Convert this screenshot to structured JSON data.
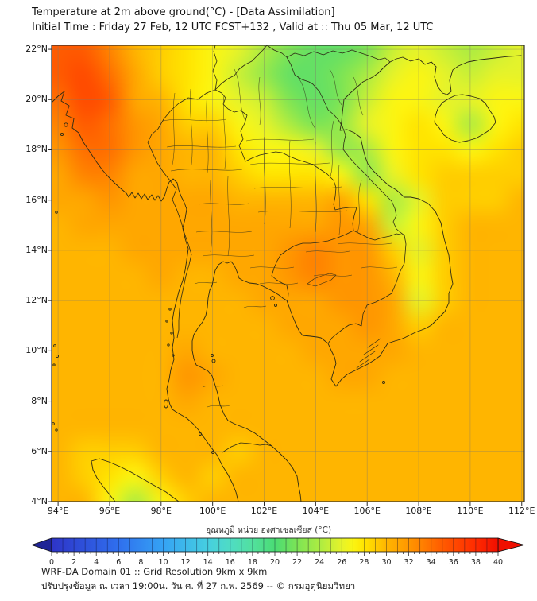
{
  "header": {
    "title_line1": "Temperature at 2m above ground(°C) - [Data Assimilation]",
    "title_line2": "Initial Time : Friday 27 Feb, 12 UTC FCST+132 , Valid at :: Thu 05 Mar, 12 UTC"
  },
  "chart_data": {
    "type": "heatmap",
    "title": "Temperature at 2m above ground(°C) - [Data Assimilation]",
    "subtitle": "Initial Time : Friday 27 Feb, 12 UTC FCST+132 , Valid at :: Thu 05 Mar, 12 UTC",
    "x_axis": {
      "label": "longitude",
      "range": [
        93.75,
        112.1
      ],
      "tick_values": [
        94,
        96,
        98,
        100,
        102,
        104,
        106,
        108,
        110,
        112
      ],
      "tick_labels": [
        "94°E",
        "96°E",
        "98°E",
        "100°E",
        "102°E",
        "104°E",
        "106°E",
        "108°E",
        "110°E",
        "112°E"
      ]
    },
    "y_axis": {
      "label": "latitude",
      "range": [
        22.16,
        4.0
      ],
      "tick_values": [
        22,
        20,
        18,
        16,
        14,
        12,
        10,
        8,
        6,
        4
      ],
      "tick_labels": [
        "22°N",
        "20°N",
        "18°N",
        "16°N",
        "14°N",
        "12°N",
        "10°N",
        "8°N",
        "6°N",
        "4°N"
      ]
    },
    "grid_on": true,
    "colorbar": {
      "label": "อุณหภูมิ หน่วย องศาเซลเซียส (°C)",
      "min": 0,
      "max": 40,
      "tick_labels": [
        0,
        2,
        4,
        6,
        8,
        10,
        12,
        14,
        16,
        18,
        20,
        22,
        24,
        26,
        28,
        30,
        32,
        34,
        36,
        38,
        40
      ],
      "minor_tick_step": 0.5,
      "left_arrow_color": "#1f2496",
      "right_arrow_color": "#ef0f00",
      "scale_stops": [
        [
          0,
          "#2E34C8"
        ],
        [
          6,
          "#2F6FEE"
        ],
        [
          10,
          "#35A3F4"
        ],
        [
          14,
          "#46CFE0"
        ],
        [
          16,
          "#4FDCC4"
        ],
        [
          18,
          "#52E09E"
        ],
        [
          20,
          "#4ADC74"
        ],
        [
          22,
          "#7DE455"
        ],
        [
          24,
          "#ACEC42"
        ],
        [
          26,
          "#E6F32A"
        ],
        [
          27,
          "#FBF513"
        ],
        [
          28,
          "#FFE400"
        ],
        [
          29,
          "#FFCE00"
        ],
        [
          30,
          "#FFB500"
        ],
        [
          31,
          "#FFA700"
        ],
        [
          32,
          "#FF9600"
        ],
        [
          33,
          "#FF8400"
        ],
        [
          34,
          "#FF6F00"
        ],
        [
          35,
          "#FF5B00"
        ],
        [
          36,
          "#FF4A00"
        ],
        [
          38,
          "#FF2B00"
        ],
        [
          40,
          "#F10E00"
        ]
      ]
    },
    "grid_lon": [
      94,
      95,
      96,
      97,
      98,
      99,
      100,
      101,
      102,
      103,
      104,
      105,
      106,
      107,
      108,
      109,
      110,
      111,
      112
    ],
    "grid_lat": [
      22,
      21,
      20,
      19,
      18,
      17,
      16,
      15,
      14,
      13,
      12,
      11,
      10,
      9,
      8,
      7,
      6,
      5,
      4
    ],
    "values_c": [
      [
        35,
        35,
        33,
        30,
        29,
        28,
        27,
        26,
        24,
        22,
        21,
        21,
        22,
        25,
        26,
        25,
        24,
        25,
        26
      ],
      [
        35,
        36,
        34,
        31,
        29,
        28,
        27,
        25,
        23,
        21,
        21,
        22,
        24,
        26,
        27,
        26,
        25,
        26,
        26
      ],
      [
        34,
        36,
        35,
        31,
        30,
        28,
        27,
        26,
        25,
        22,
        21,
        22,
        25,
        27,
        27,
        26,
        26,
        27,
        27
      ],
      [
        33,
        35,
        34,
        32,
        31,
        29,
        29,
        27,
        26,
        24,
        22,
        23,
        26,
        27,
        28,
        27,
        24,
        27,
        28
      ],
      [
        32,
        34,
        34,
        32,
        31,
        30,
        30,
        28,
        27,
        27,
        26,
        23,
        24,
        27,
        28,
        28,
        27,
        28,
        29
      ],
      [
        31,
        33,
        33,
        31,
        31,
        30,
        30,
        29,
        28,
        28,
        28,
        27,
        23,
        26,
        28,
        29,
        29,
        29,
        29
      ],
      [
        31,
        31,
        32,
        31,
        31,
        31,
        31,
        30,
        30,
        30,
        30,
        31,
        28,
        24,
        26,
        29,
        29,
        29,
        30
      ],
      [
        30,
        31,
        31,
        31,
        31,
        31,
        31,
        31,
        31,
        31,
        31,
        32,
        31,
        25,
        27,
        29,
        30,
        30,
        30
      ],
      [
        30,
        30,
        30,
        31,
        31,
        31,
        31,
        31,
        31,
        32,
        33,
        32,
        32,
        29,
        26,
        29,
        30,
        30,
        30
      ],
      [
        30,
        30,
        30,
        30,
        31,
        30,
        30,
        31,
        31,
        32,
        33,
        32,
        32,
        30,
        27,
        29,
        30,
        30,
        30
      ],
      [
        30,
        30,
        30,
        30,
        30,
        30,
        30,
        30,
        31,
        31,
        31,
        32,
        32,
        31,
        26,
        29,
        30,
        30,
        30
      ],
      [
        30,
        30,
        30,
        30,
        30,
        30,
        30,
        30,
        30,
        31,
        31,
        31,
        32,
        31,
        29,
        30,
        30,
        30,
        30
      ],
      [
        30,
        30,
        30,
        30,
        30,
        31,
        30,
        30,
        30,
        30,
        31,
        31,
        31,
        31,
        30,
        30,
        30,
        30,
        30
      ],
      [
        30,
        30,
        30,
        30,
        30,
        32,
        31,
        30,
        30,
        30,
        30,
        31,
        31,
        30,
        30,
        30,
        30,
        30,
        30
      ],
      [
        30,
        30,
        30,
        30,
        30,
        31,
        30,
        30,
        30,
        30,
        30,
        30,
        30,
        30,
        30,
        30,
        30,
        30,
        30
      ],
      [
        30,
        30,
        30,
        30,
        30,
        30,
        30,
        30,
        30,
        30,
        30,
        30,
        30,
        30,
        30,
        30,
        30,
        30,
        30
      ],
      [
        30,
        29,
        29,
        29,
        30,
        30,
        30,
        29,
        30,
        30,
        30,
        30,
        30,
        30,
        30,
        30,
        30,
        30,
        30
      ],
      [
        30,
        29,
        28,
        27,
        29,
        30,
        29,
        30,
        30,
        30,
        30,
        30,
        30,
        30,
        30,
        30,
        30,
        30,
        30
      ],
      [
        30,
        30,
        27,
        24,
        27,
        29,
        30,
        30,
        30,
        30,
        30,
        30,
        30,
        30,
        30,
        30,
        30,
        30,
        30
      ]
    ]
  },
  "footer": {
    "line1": "WRF-DA Domain 01 :: Grid Resolution 9km x 9km",
    "line2": "ปรับปรุงข้อมูล ณ เวลา 19:00น. วัน ศ. ที่ 27 ก.พ. 2569 -- © กรมอุตุนิยมวิทยา"
  }
}
